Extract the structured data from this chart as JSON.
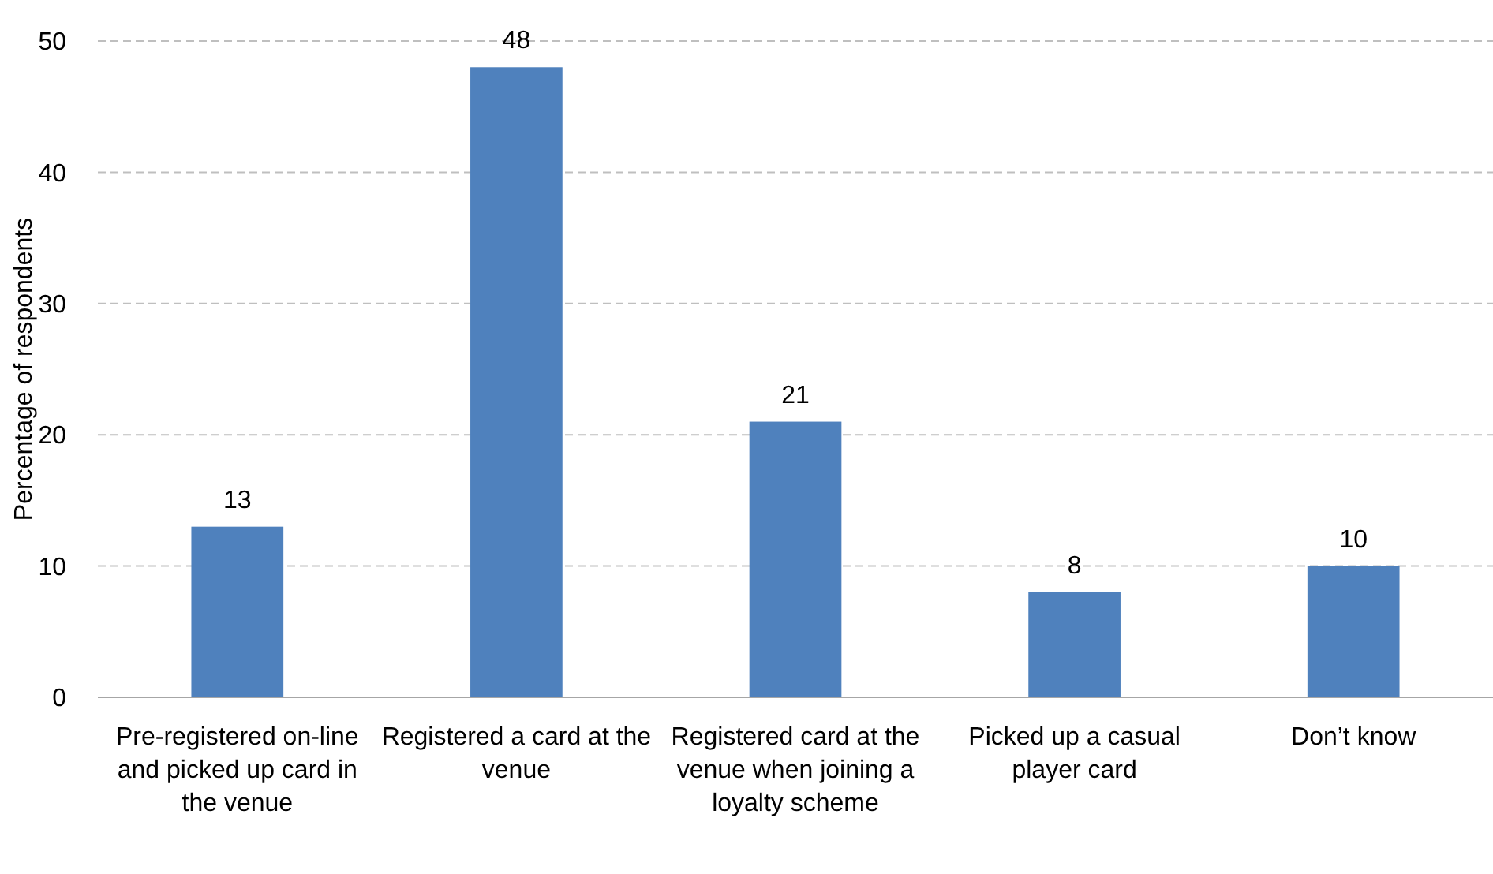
{
  "chart_data": {
    "type": "bar",
    "ylabel": "Percentage of respondents",
    "categories": [
      "Pre-registered on-line and picked up card in the venue",
      "Registered a card at the venue",
      "Registered card at the venue when joining a loyalty scheme",
      "Picked up a casual player card",
      "Don’t know"
    ],
    "values": [
      13,
      48,
      21,
      8,
      10
    ],
    "color": "#4f81bd",
    "ylim": [
      0,
      50
    ],
    "yticks": [
      0,
      10,
      20,
      30,
      40,
      50
    ],
    "grid": "y",
    "data_labels": true
  }
}
